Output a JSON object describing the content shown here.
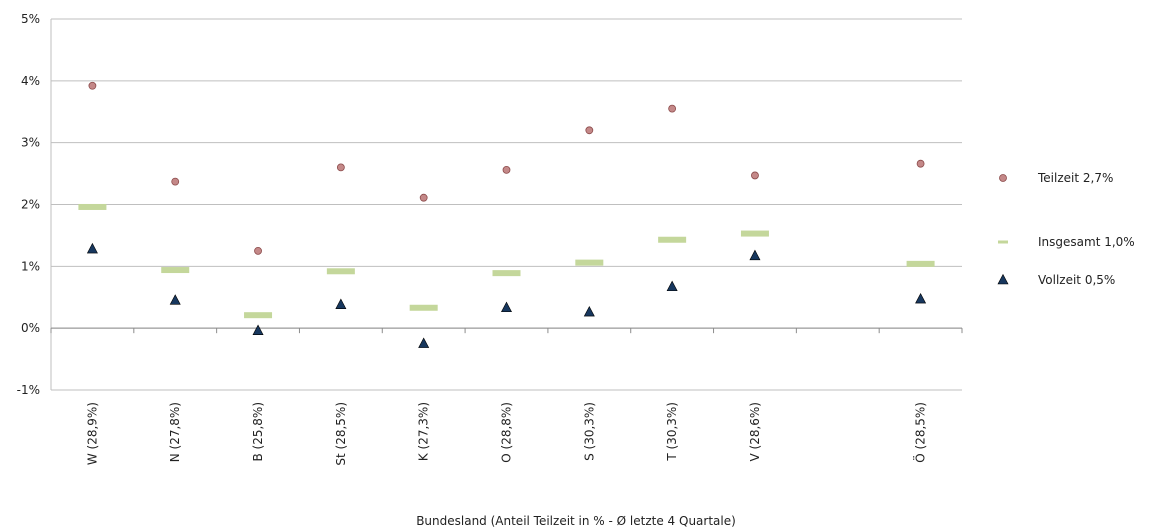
{
  "chart_data": {
    "type": "scatter",
    "title": "",
    "xlabel": "Bundesland  (Anteil Teilzeit in % - Ø letzte 4 Quartale)",
    "ylabel": "",
    "ylim": [
      -1,
      5
    ],
    "yticks": [
      "-1%",
      "0%",
      "1%",
      "2%",
      "3%",
      "4%",
      "5%"
    ],
    "grid": "horizontal",
    "legend_position": "right",
    "categories": [
      "W (28,9%)",
      "N (27,8%)",
      "B (25,8%)",
      "St (28,5%)",
      "K (27,3%)",
      "O (28,8%)",
      "S (30,3%)",
      "T (30,3%)",
      "V (28,6%)",
      "",
      "Ö (28,5%)"
    ],
    "series": [
      {
        "name": "Teilzeit 2,7%",
        "marker": "circle",
        "color": "#c48888",
        "values": [
          3.92,
          2.37,
          1.25,
          2.6,
          2.11,
          2.56,
          3.2,
          3.55,
          2.47,
          null,
          2.66
        ]
      },
      {
        "name": "Insgesamt 1,0%",
        "marker": "dash",
        "color": "#c4d79b",
        "values": [
          1.96,
          0.94,
          0.21,
          0.92,
          0.33,
          0.89,
          1.06,
          1.43,
          1.53,
          null,
          1.04
        ]
      },
      {
        "name": "Vollzeit 0,5%",
        "marker": "triangle",
        "color": "#17375e",
        "values": [
          1.28,
          0.45,
          -0.04,
          0.38,
          -0.25,
          0.33,
          0.26,
          0.67,
          1.17,
          null,
          0.47
        ]
      }
    ]
  }
}
